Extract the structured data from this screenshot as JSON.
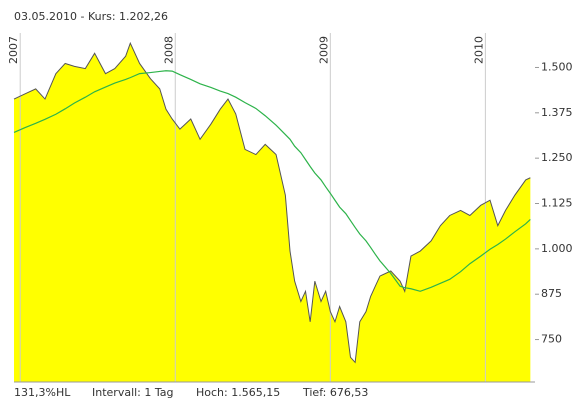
{
  "chart_data": {
    "type": "line",
    "title": "03.05.2010  -  Kurs: 1.202,26",
    "footer": [
      "131,3%HL",
      "Intervall: 1 Tag",
      "Hoch: 1.565,15",
      "Tief: 676,53"
    ],
    "x": [
      2006.96,
      2007.03,
      2007.1,
      2007.16,
      2007.23,
      2007.29,
      2007.35,
      2007.42,
      2007.48,
      2007.55,
      2007.61,
      2007.68,
      2007.71,
      2007.77,
      2007.84,
      2007.9,
      2007.94,
      2007.98,
      2008.03,
      2008.1,
      2008.16,
      2008.23,
      2008.29,
      2008.34,
      2008.39,
      2008.45,
      2008.52,
      2008.58,
      2008.65,
      2008.71,
      2008.74,
      2008.77,
      2008.81,
      2008.84,
      2008.87,
      2008.9,
      2008.94,
      2008.97,
      2009.0,
      2009.03,
      2009.06,
      2009.1,
      2009.13,
      2009.16,
      2009.19,
      2009.23,
      2009.26,
      2009.29,
      2009.32,
      2009.39,
      2009.45,
      2009.48,
      2009.52,
      2009.58,
      2009.65,
      2009.71,
      2009.77,
      2009.84,
      2009.9,
      2009.97,
      2010.03,
      2010.08,
      2010.13,
      2010.19,
      2010.26,
      2010.29
    ],
    "series": [
      {
        "color": "#555555",
        "fill": "#ffff00",
        "values": [
          1413,
          1427,
          1441,
          1413,
          1483,
          1511,
          1503,
          1497,
          1539,
          1483,
          1497,
          1531,
          1567,
          1511,
          1469,
          1441,
          1385,
          1358,
          1330,
          1358,
          1302,
          1344,
          1385,
          1413,
          1372,
          1274,
          1260,
          1288,
          1260,
          1148,
          994,
          911,
          855,
          883,
          799,
          911,
          855,
          883,
          827,
          799,
          841,
          799,
          701,
          687,
          799,
          827,
          869,
          897,
          925,
          939,
          911,
          883,
          980,
          994,
          1022,
          1064,
          1092,
          1106,
          1092,
          1120,
          1134,
          1064,
          1106,
          1148,
          1190,
          1196
        ]
      },
      {
        "color": "#2db34a",
        "values": [
          1321,
          1334,
          1346,
          1357,
          1371,
          1386,
          1402,
          1418,
          1433,
          1446,
          1457,
          1467,
          1472,
          1483,
          1486,
          1489,
          1491,
          1490,
          1480,
          1467,
          1455,
          1445,
          1435,
          1428,
          1418,
          1403,
          1387,
          1367,
          1341,
          1315,
          1302,
          1283,
          1265,
          1246,
          1227,
          1209,
          1190,
          1171,
          1153,
          1134,
          1115,
          1097,
          1078,
          1059,
          1041,
          1022,
          1004,
          985,
          967,
          932,
          897,
          893,
          890,
          883,
          894,
          905,
          916,
          937,
          959,
          980,
          999,
          1012,
          1027,
          1047,
          1069,
          1081
        ]
      }
    ],
    "xlim": [
      2006.96,
      2010.32
    ],
    "xticks": [
      2007,
      2008,
      2009,
      2010
    ],
    "ylim": [
      633,
      1595
    ],
    "yticks": [
      750,
      875,
      {
        "value": 1000,
        "label": "1.000"
      },
      {
        "value": 1125,
        "label": "1.125"
      },
      {
        "value": 1250,
        "label": "1.250"
      },
      {
        "value": 1375,
        "label": "1.375"
      },
      {
        "value": 1500,
        "label": "1.500"
      }
    ],
    "grid": true
  }
}
